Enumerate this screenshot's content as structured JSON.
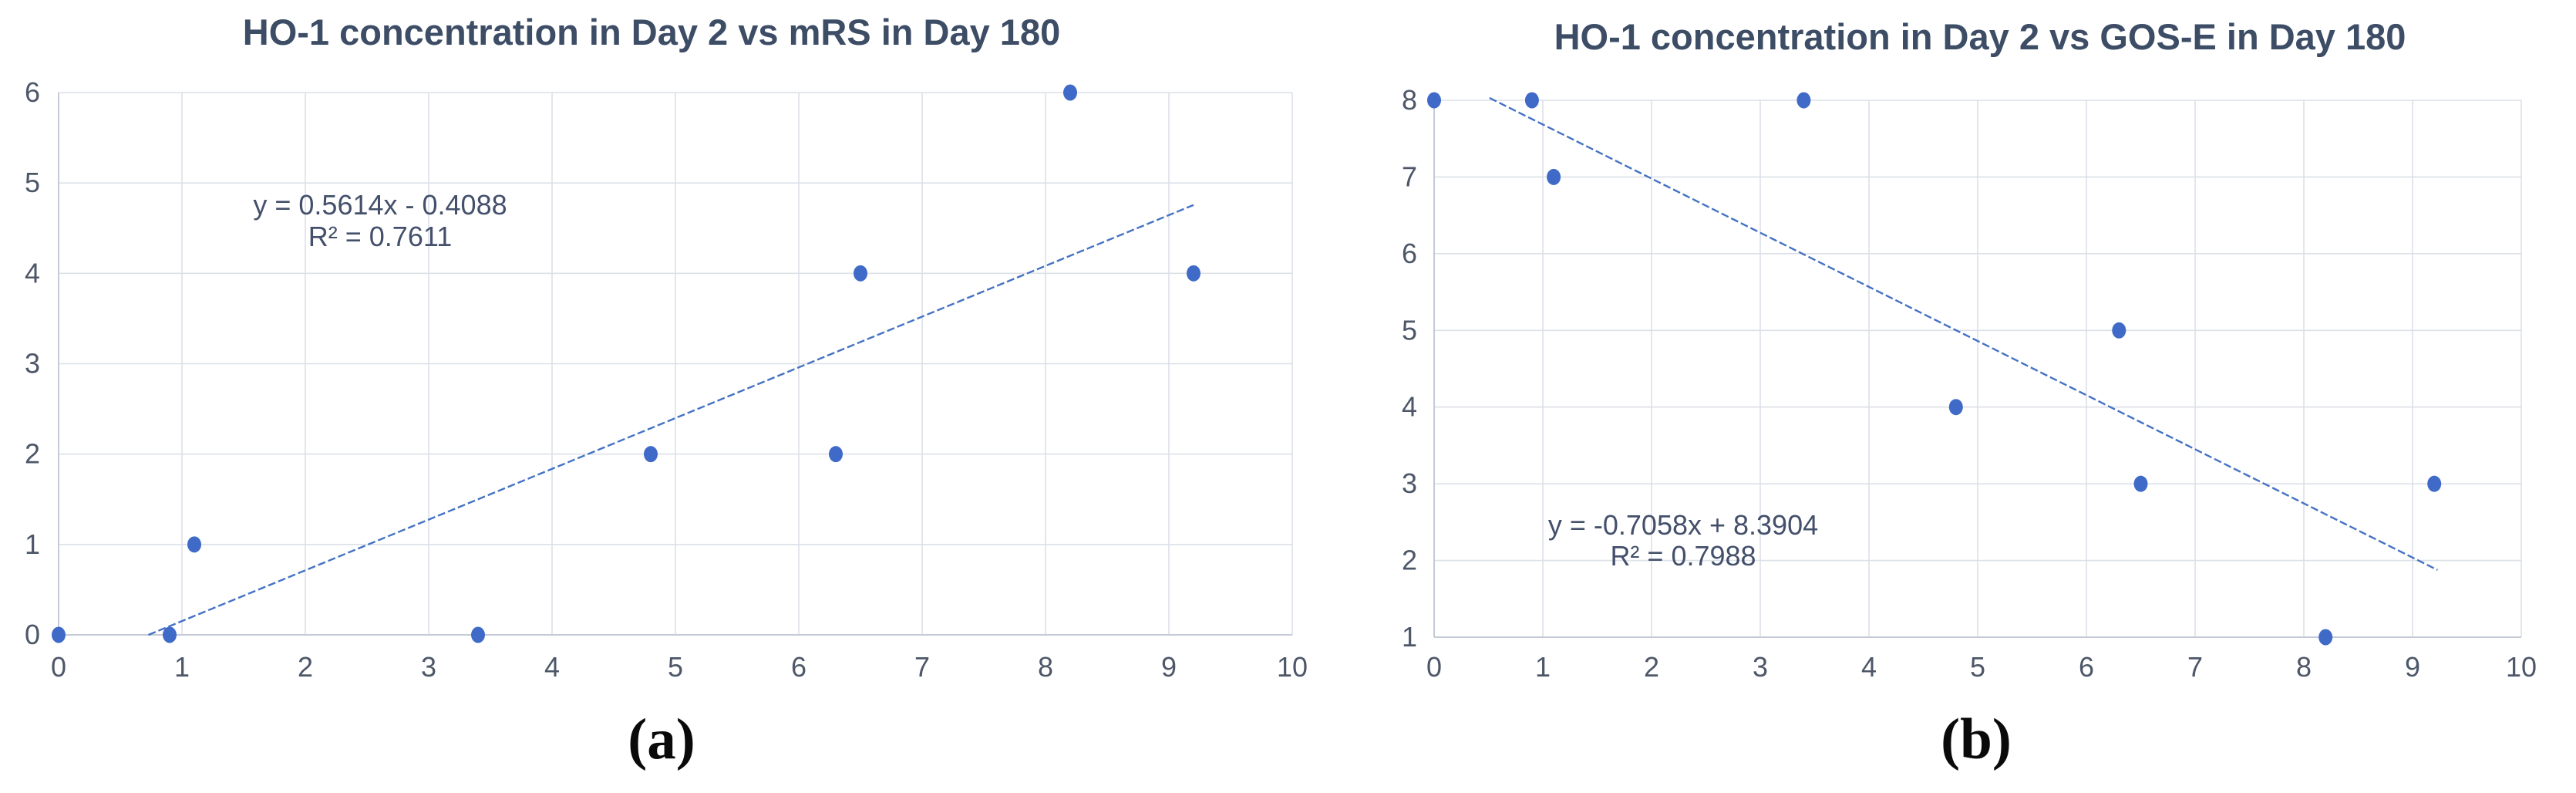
{
  "figure": {
    "captions": [
      {
        "label": "(a)"
      },
      {
        "label": "(b)"
      }
    ]
  },
  "chart_data": [
    {
      "type": "scatter",
      "title": "HO-1 concentration in Day 2 vs mRS in Day 180",
      "panel_label": "(a)",
      "x": [
        0,
        0.9,
        1.1,
        3.4,
        4.8,
        6.3,
        6.5,
        8.2,
        9.2
      ],
      "y": [
        0,
        0,
        1,
        0,
        2,
        2,
        4,
        6,
        4
      ],
      "xlim": [
        0,
        10
      ],
      "ylim": [
        0,
        6
      ],
      "x_ticks": [
        "0",
        "1",
        "2",
        "3",
        "4",
        "5",
        "6",
        "7",
        "8",
        "9",
        "10"
      ],
      "y_ticks": [
        "0",
        "1",
        "2",
        "3",
        "4",
        "5",
        "6"
      ],
      "grid": true,
      "legend": false,
      "trendline": {
        "slope": 0.5614,
        "intercept": -0.4088,
        "x_start": 0.728,
        "x_end": 9.2,
        "equation_label": "y = 0.5614x - 0.4088",
        "r_squared_label": "R² = 0.7611"
      },
      "marker_color": "#3f6ac8",
      "trendline_color": "#4472c4"
    },
    {
      "type": "scatter",
      "title": "HO-1 concentration in Day 2 vs GOS-E in Day 180",
      "panel_label": "(b)",
      "x": [
        0,
        0.9,
        1.1,
        3.4,
        4.8,
        6.3,
        6.5,
        8.2,
        9.2
      ],
      "y": [
        8,
        8,
        7,
        8,
        4,
        5,
        3,
        1,
        3
      ],
      "xlim": [
        0,
        10
      ],
      "ylim": [
        1,
        8
      ],
      "x_ticks": [
        "0",
        "1",
        "2",
        "3",
        "4",
        "5",
        "6",
        "7",
        "8",
        "9",
        "10"
      ],
      "y_ticks": [
        "1",
        "2",
        "3",
        "4",
        "5",
        "6",
        "7",
        "8"
      ],
      "grid": true,
      "legend": false,
      "trendline": {
        "slope": -0.7058,
        "intercept": 8.3904,
        "x_start": 0.51,
        "x_end": 9.23,
        "equation_label": "y = -0.7058x + 8.3904",
        "r_squared_label": "R² = 0.7988"
      },
      "marker_color": "#3f6ac8",
      "trendline_color": "#4472c4"
    }
  ],
  "colors": {
    "title_text": "#3d4d66",
    "axis_label_text": "#4d5768",
    "equation_text": "#44506b",
    "gridline": "#dce0e7",
    "axis_line": "#c5cbd6",
    "background": "#ffffff"
  }
}
